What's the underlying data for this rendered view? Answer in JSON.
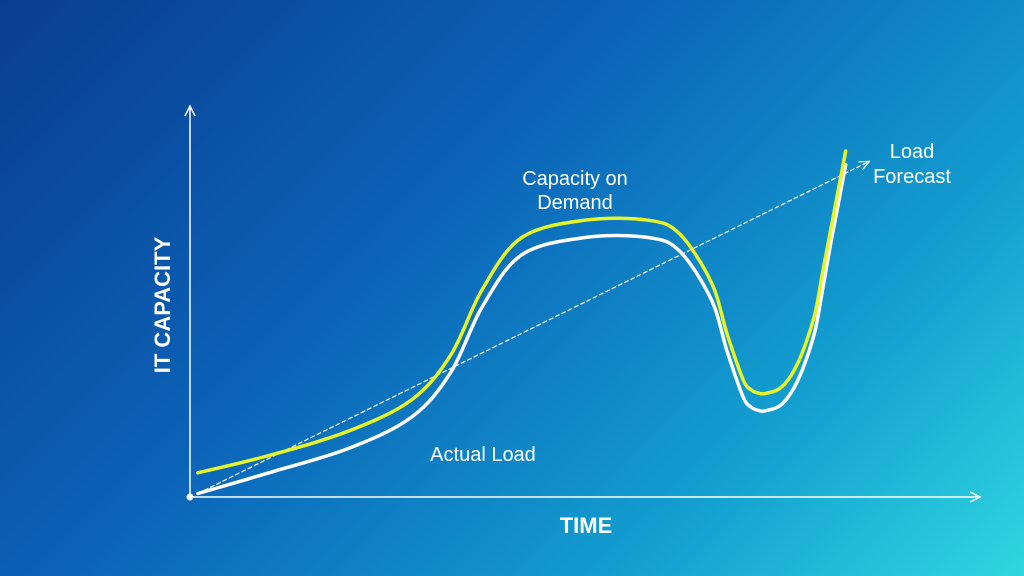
{
  "chart_data": {
    "type": "line",
    "title": "",
    "xlabel": "TIME",
    "ylabel": "IT CAPACITY",
    "xlim": [
      0,
      100
    ],
    "ylim": [
      0,
      100
    ],
    "grid": false,
    "ticks": false,
    "series": [
      {
        "name": "Capacity on Demand",
        "color": "#e6f52a",
        "x": [
          1,
          10,
          20,
          28,
          33,
          37,
          42,
          50,
          58,
          62,
          66,
          68,
          70,
          71,
          72,
          73,
          75,
          77,
          79,
          80,
          81,
          82,
          83
        ],
        "y": [
          7,
          12,
          19,
          28,
          41,
          60,
          75,
          80,
          80,
          76,
          62,
          47,
          34,
          31,
          30,
          30,
          32,
          39,
          52,
          64,
          76,
          88,
          100
        ]
      },
      {
        "name": "Actual Load",
        "color": "#ffffff",
        "x": [
          1,
          10,
          20,
          28,
          33,
          37,
          42,
          50,
          58,
          62,
          66,
          68,
          70,
          71,
          72,
          73,
          75,
          77,
          79,
          80,
          81,
          82,
          83
        ],
        "y": [
          1,
          7,
          14,
          23,
          36,
          55,
          70,
          75,
          75,
          71,
          57,
          42,
          29,
          26,
          25,
          25,
          27,
          34,
          47,
          59,
          72,
          84,
          96
        ]
      },
      {
        "name": "Load Forecast",
        "color": "#ffffff",
        "style": "dashed",
        "x": [
          1,
          86
        ],
        "y": [
          1,
          97
        ]
      }
    ],
    "annotations": [
      {
        "text": "Capacity on",
        "series": "Capacity on Demand"
      },
      {
        "text": "Demand",
        "series": "Capacity on Demand"
      },
      {
        "text": "Actual Load",
        "series": "Actual Load"
      },
      {
        "text": "Load",
        "series": "Load Forecast"
      },
      {
        "text": "Forecast",
        "series": "Load Forecast"
      }
    ]
  }
}
